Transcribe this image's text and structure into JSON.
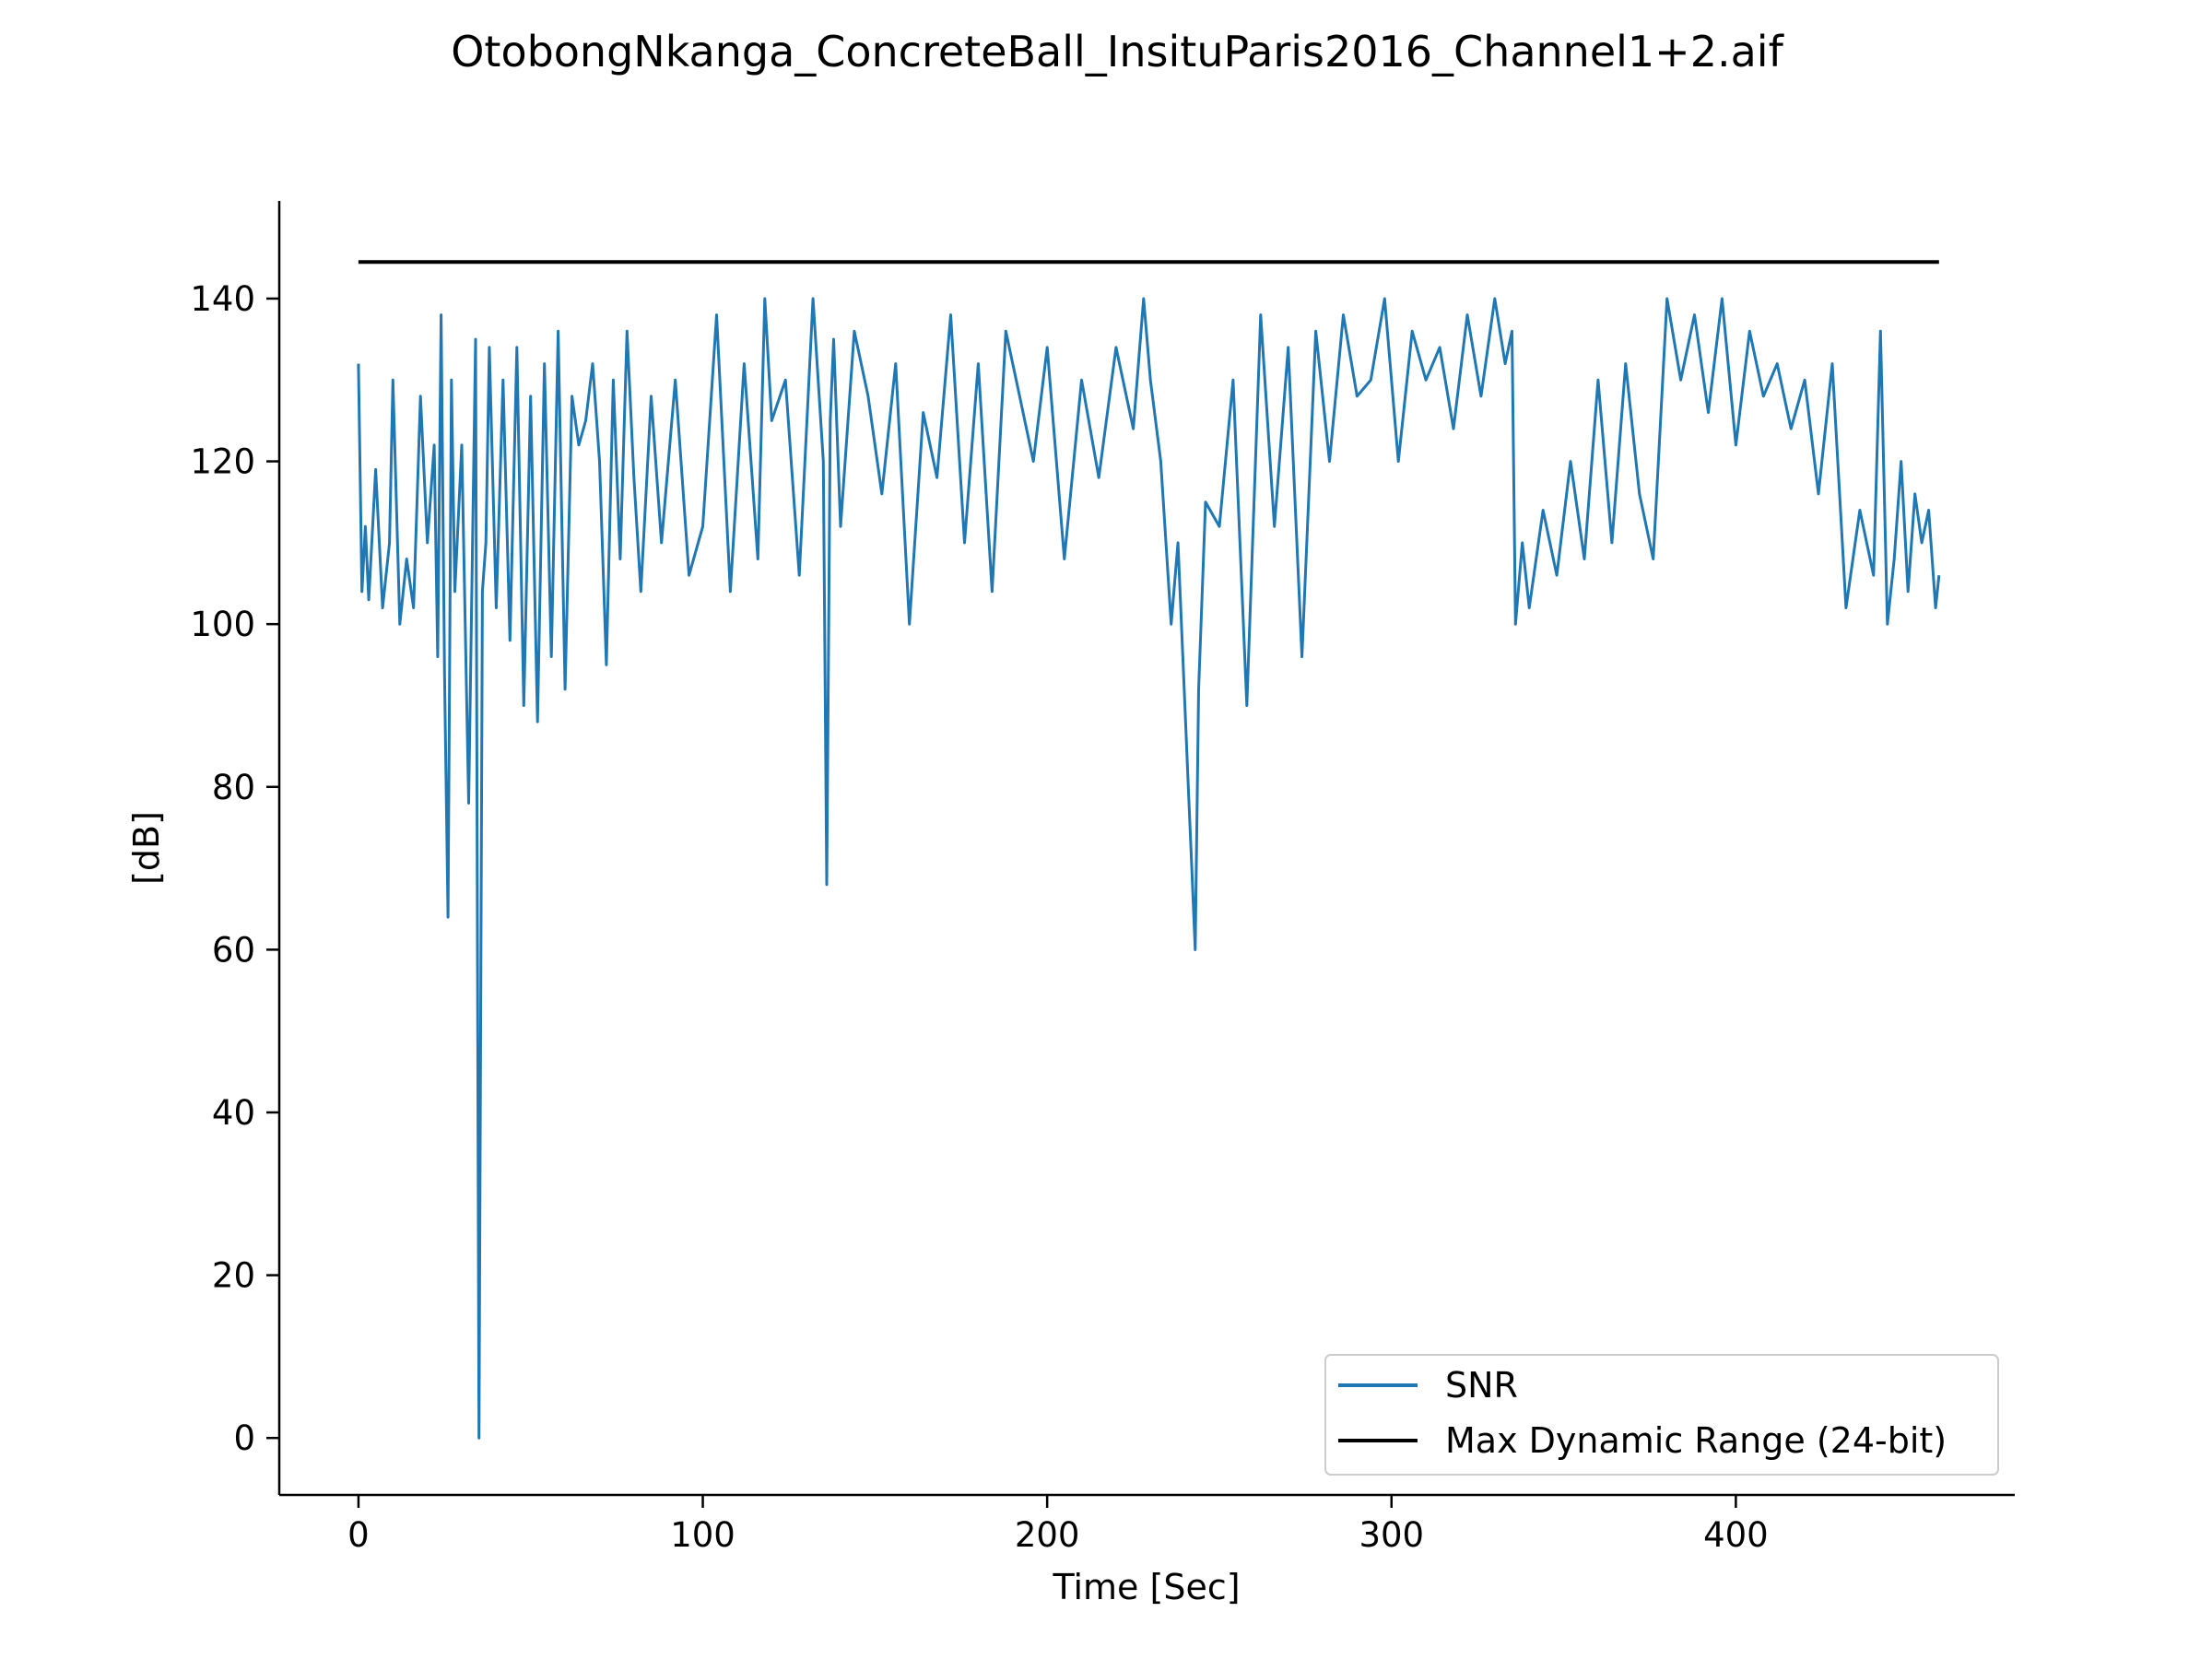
{
  "chart_data": {
    "type": "line",
    "title": "OtobongNkanga_ConcreteBall_InsituParis2016_Channel1+2.aif",
    "xlabel": "Time [Sec]",
    "ylabel": "[dB]",
    "xlim": [
      -23,
      481
    ],
    "ylim": [
      -7,
      152
    ],
    "xticks": [
      0,
      100,
      200,
      300,
      400
    ],
    "yticks": [
      0,
      20,
      40,
      60,
      80,
      100,
      120,
      140
    ],
    "grid": false,
    "legend": "lower-right",
    "series": [
      {
        "name": "SNR",
        "color": "#1f77b4",
        "x": [
          0,
          1,
          2,
          3,
          5,
          7,
          9,
          10,
          12,
          14,
          16,
          18,
          20,
          22,
          23,
          24,
          25,
          26,
          27,
          28,
          30,
          32,
          34,
          35,
          36,
          37,
          38,
          40,
          42,
          44,
          46,
          48,
          50,
          52,
          54,
          56,
          58,
          60,
          62,
          64,
          66,
          68,
          70,
          72,
          74,
          76,
          78,
          80,
          82,
          85,
          88,
          92,
          96,
          100,
          104,
          108,
          112,
          116,
          118,
          120,
          124,
          128,
          132,
          135,
          136,
          137,
          138,
          140,
          144,
          148,
          152,
          156,
          160,
          164,
          168,
          172,
          176,
          180,
          184,
          188,
          192,
          196,
          200,
          205,
          210,
          215,
          220,
          225,
          228,
          230,
          233,
          236,
          238,
          240,
          241,
          242,
          243,
          244,
          246,
          250,
          254,
          258,
          262,
          266,
          270,
          274,
          278,
          282,
          286,
          290,
          294,
          298,
          302,
          306,
          310,
          314,
          318,
          322,
          326,
          330,
          333,
          335,
          336,
          338,
          340,
          344,
          348,
          352,
          356,
          360,
          364,
          368,
          372,
          376,
          380,
          384,
          388,
          392,
          396,
          400,
          404,
          408,
          412,
          416,
          420,
          424,
          428,
          432,
          436,
          440,
          442,
          444,
          446,
          448,
          450,
          452,
          454,
          456,
          458,
          459
        ],
        "y": [
          132,
          104,
          112,
          103,
          119,
          102,
          110,
          130,
          100,
          108,
          102,
          128,
          110,
          122,
          96,
          138,
          94,
          64,
          130,
          104,
          122,
          78,
          135,
          0,
          104,
          110,
          134,
          102,
          130,
          98,
          134,
          90,
          128,
          88,
          132,
          96,
          136,
          92,
          128,
          122,
          125,
          132,
          120,
          95,
          130,
          108,
          136,
          118,
          104,
          128,
          110,
          130,
          106,
          112,
          138,
          104,
          132,
          108,
          140,
          125,
          130,
          106,
          140,
          120,
          68,
          125,
          135,
          112,
          136,
          128,
          116,
          132,
          100,
          126,
          118,
          138,
          110,
          132,
          104,
          136,
          128,
          120,
          134,
          108,
          130,
          118,
          134,
          124,
          140,
          130,
          120,
          100,
          110,
          90,
          80,
          70,
          60,
          92,
          115,
          112,
          130,
          90,
          138,
          112,
          134,
          96,
          136,
          120,
          138,
          128,
          130,
          140,
          120,
          136,
          130,
          134,
          124,
          138,
          128,
          140,
          132,
          136,
          100,
          110,
          102,
          114,
          106,
          120,
          108,
          130,
          110,
          132,
          116,
          108,
          140,
          130,
          138,
          126,
          140,
          122,
          136,
          128,
          132,
          124,
          130,
          116,
          132,
          102,
          114,
          106,
          136,
          100,
          108,
          120,
          104,
          116,
          110,
          114,
          102,
          106
        ]
      },
      {
        "name": "Max Dynamic Range (24-bit)",
        "color": "#000000",
        "x": [
          0,
          459
        ],
        "y": [
          144.5,
          144.5
        ]
      }
    ]
  }
}
